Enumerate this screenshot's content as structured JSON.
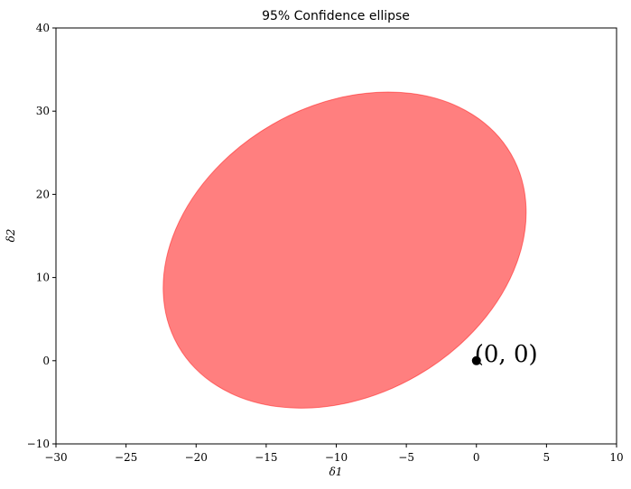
{
  "chart_data": {
    "type": "scatter",
    "title": "95% Confidence ellipse",
    "xlabel": "δ1",
    "ylabel": "δ2",
    "xlim": [
      -30,
      10
    ],
    "ylim": [
      -10,
      40
    ],
    "xticks": [
      -30,
      -25,
      -20,
      -15,
      -10,
      -5,
      0,
      5,
      10
    ],
    "yticks": [
      -10,
      0,
      10,
      20,
      30,
      40
    ],
    "xtick_labels": [
      "−30",
      "−25",
      "−20",
      "−15",
      "−10",
      "−5",
      "0",
      "5",
      "10"
    ],
    "ytick_labels": [
      "−10",
      "0",
      "10",
      "20",
      "30",
      "40"
    ],
    "grid": false,
    "ellipse": {
      "center": [
        -9.4,
        13.3
      ],
      "x_extent": [
        -22.3,
        3.6
      ],
      "y_extent": [
        -5.7,
        32.3
      ],
      "rotation_deg": 30,
      "fill_color": "#ff0000",
      "opacity": 0.5
    },
    "points": [
      {
        "x": 0,
        "y": 0,
        "label": "(0, 0)",
        "color": "#000000"
      }
    ]
  }
}
